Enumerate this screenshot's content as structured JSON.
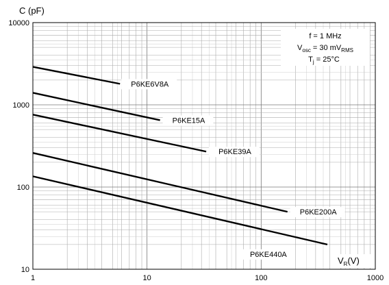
{
  "chart_data": {
    "type": "line",
    "title": "",
    "xlabel": {
      "main": "V",
      "sub": "R",
      "unit": "(V)"
    },
    "ylabel": "C (pF)",
    "x_scale": "log",
    "y_scale": "log",
    "xlim": [
      1,
      1000
    ],
    "ylim": [
      10,
      10000
    ],
    "x_ticks": [
      "1",
      "10",
      "100",
      "1000"
    ],
    "y_ticks": [
      "10",
      "100",
      "1000",
      "10000"
    ],
    "grid": true,
    "conditions": {
      "freq": "f = 1 MHz",
      "vosc_main": "V",
      "vosc_sub": "osc",
      "vosc_val": " = 30 mV",
      "vosc_unit": "RMS",
      "tj_main": "T",
      "tj_sub": "j",
      "tj_val": " = 25°C"
    },
    "series": [
      {
        "name": "P6KE6V8A",
        "x": [
          1,
          5.8
        ],
        "y": [
          2900,
          1800
        ]
      },
      {
        "name": "P6KE15A",
        "x": [
          1,
          13
        ],
        "y": [
          1400,
          650
        ]
      },
      {
        "name": "P6KE39A",
        "x": [
          1,
          33
        ],
        "y": [
          760,
          270
        ]
      },
      {
        "name": "P6KE200A",
        "x": [
          1,
          170
        ],
        "y": [
          260,
          50
        ]
      },
      {
        "name": "P6KE440A",
        "x": [
          1,
          380
        ],
        "y": [
          135,
          20
        ]
      }
    ]
  }
}
